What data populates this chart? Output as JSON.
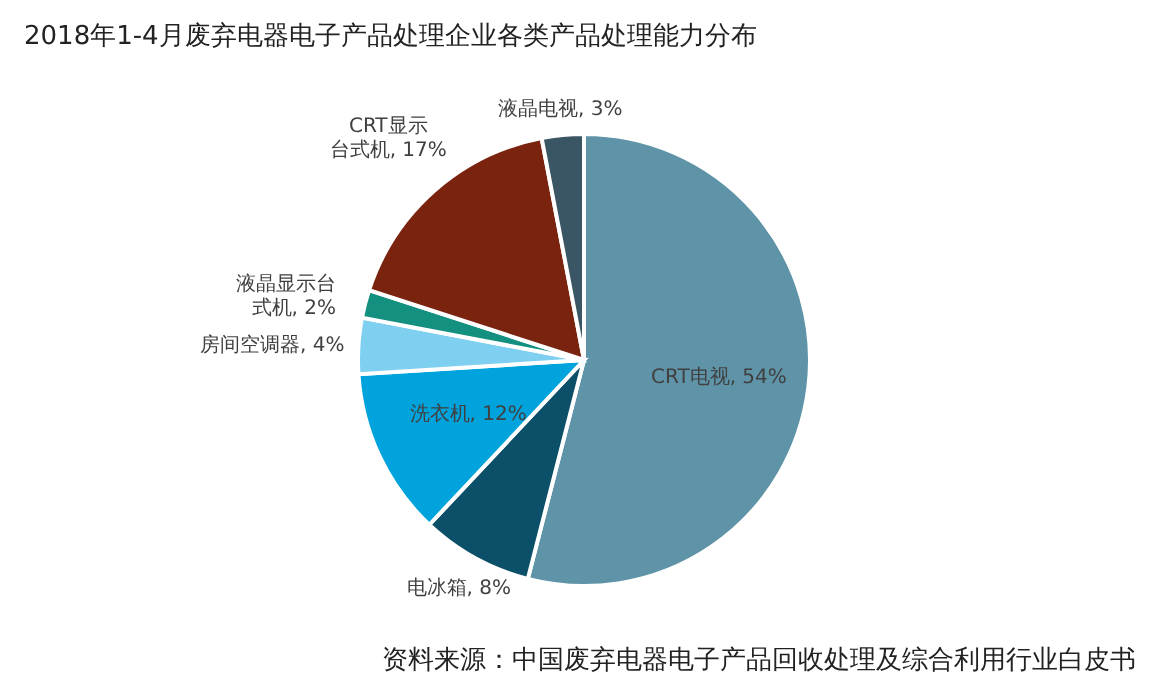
{
  "chart_data": {
    "type": "pie",
    "title": "2018年1-4月废弃电器电子产品处理企业各类产品处理能力分布",
    "categories": [
      "CRT电视",
      "电冰箱",
      "洗衣机",
      "房间空调器",
      "液晶显示台式机",
      "CRT显示台式机",
      "液晶电视"
    ],
    "values": [
      54,
      8,
      12,
      4,
      2,
      17,
      3
    ],
    "value_labels": [
      "54%",
      "8%",
      "12%",
      "4%",
      "2%",
      "17%",
      "3%"
    ],
    "colors": [
      "#5e93a8",
      "#0b4f68",
      "#00a3dc",
      "#7fd0f0",
      "#149080",
      "#7a2410",
      "#3a5564"
    ],
    "annotations": [
      "资料来源：中国废弃电器电子产品回收处理及综合利用行业白皮书"
    ]
  }
}
